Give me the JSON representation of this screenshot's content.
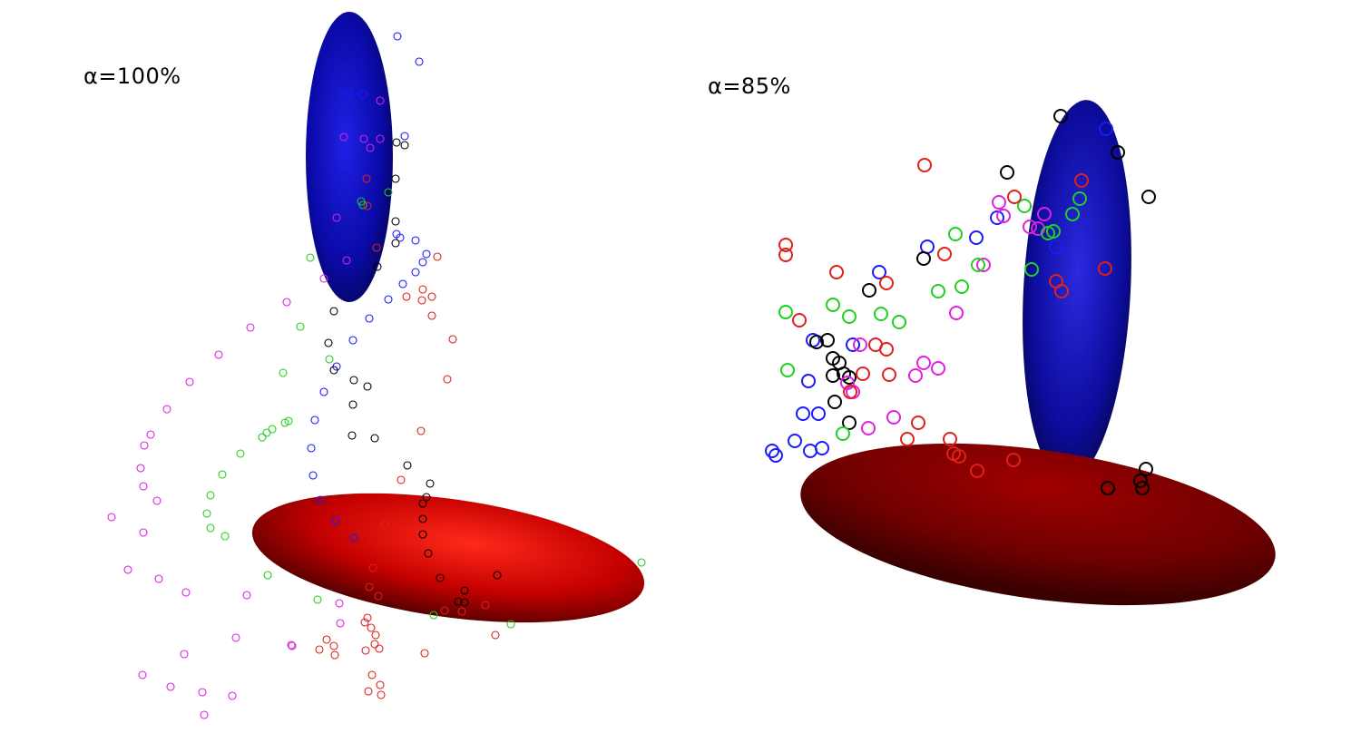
{
  "panels": [
    {
      "label": "α=100%",
      "ellipsoids": [
        {
          "name": "blue-ellipsoid",
          "color": "#0000c8"
        },
        {
          "name": "red-ellipsoid",
          "color": "#d40000"
        }
      ]
    },
    {
      "label": "α=85%",
      "ellipsoids": [
        {
          "name": "blue-ellipsoid",
          "color": "#0000c8"
        },
        {
          "name": "red-ellipsoid",
          "color": "#8b0000"
        }
      ]
    }
  ],
  "point_colors": {
    "blue": "#1a1aff",
    "red": "#e0201a",
    "magenta": "#e020e0",
    "green": "#20d020",
    "black": "#000000"
  }
}
